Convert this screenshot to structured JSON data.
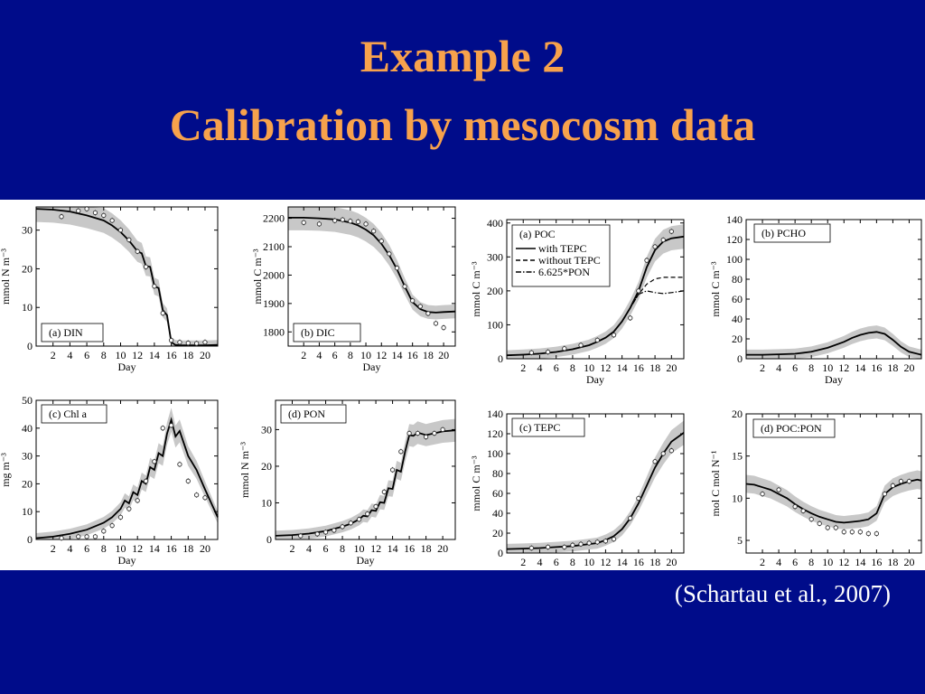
{
  "slide": {
    "title_line1": "Example 2",
    "title_line2": "Calibration by mesocosm data",
    "citation": "(Schartau et al., 2007)",
    "colors": {
      "background": "#000c8a",
      "title": "#f7a24c",
      "citation": "#ffffff",
      "band": "#c8c8c8",
      "line": "#000000"
    }
  },
  "chart_data": [
    {
      "type": "line",
      "panel_label": "(a) DIN",
      "xlabel": "Day",
      "ylabel": "mmol N m⁻³",
      "xlim": [
        0,
        21.5
      ],
      "ylim": [
        0,
        36
      ],
      "yticks": [
        0,
        10,
        20,
        30
      ],
      "xticks": [
        2,
        4,
        6,
        8,
        10,
        12,
        14,
        16,
        18,
        20
      ],
      "series": [
        {
          "kind": "model",
          "x": [
            0,
            2,
            4,
            6,
            8,
            9,
            10,
            11,
            12,
            12.5,
            13,
            13.5,
            14,
            14.5,
            15,
            15.5,
            16,
            16.5,
            17,
            18,
            19,
            20,
            21.5
          ],
          "y": [
            35.5,
            35.3,
            34.8,
            33.8,
            32.5,
            31.2,
            29.5,
            27.3,
            24.5,
            24,
            20.7,
            20.5,
            15.5,
            15,
            9.3,
            8,
            1,
            0.3,
            0.2,
            0.2,
            0.2,
            0.2,
            0.3
          ]
        },
        {
          "kind": "observations",
          "x": [
            3,
            5,
            6,
            7,
            8,
            9,
            10,
            11,
            12,
            13,
            14,
            15,
            16,
            17,
            18,
            19,
            20
          ],
          "y": [
            33.5,
            35,
            35.5,
            34.5,
            33.8,
            32.5,
            30,
            27.5,
            24.5,
            20.5,
            15.5,
            8.5,
            1.5,
            1,
            0.8,
            0.7,
            1
          ]
        }
      ]
    },
    {
      "type": "line",
      "panel_label": "(b) DIC",
      "xlabel": "Day",
      "ylabel": "mmol C m⁻³",
      "xlim": [
        0,
        21.5
      ],
      "ylim": [
        1750,
        2240
      ],
      "yticks": [
        1800,
        1900,
        2000,
        2100,
        2200
      ],
      "xticks": [
        2,
        4,
        6,
        8,
        10,
        12,
        14,
        16,
        18,
        20
      ],
      "series": [
        {
          "kind": "model",
          "x": [
            0,
            2,
            4,
            6,
            8,
            9,
            10,
            11,
            12,
            13,
            14,
            15,
            16,
            17,
            18,
            19,
            20,
            21.5
          ],
          "y": [
            2202,
            2202,
            2200,
            2196,
            2185,
            2175,
            2160,
            2140,
            2110,
            2070,
            2020,
            1960,
            1905,
            1880,
            1870,
            1868,
            1870,
            1872
          ]
        },
        {
          "kind": "observations",
          "x": [
            2,
            4,
            6,
            7,
            8,
            9,
            10,
            11,
            12,
            13,
            14,
            15,
            16,
            17,
            18,
            19,
            20
          ],
          "y": [
            2185,
            2180,
            2192,
            2195,
            2190,
            2188,
            2180,
            2155,
            2120,
            2075,
            2025,
            1960,
            1910,
            1890,
            1865,
            1830,
            1815
          ]
        }
      ]
    },
    {
      "type": "line",
      "panel_label": "(a) POC",
      "xlabel": "Day",
      "ylabel": "mmol C m⁻³",
      "xlim": [
        0,
        21.5
      ],
      "ylim": [
        0,
        410
      ],
      "yticks": [
        0,
        100,
        200,
        300,
        400
      ],
      "xticks": [
        2,
        4,
        6,
        8,
        10,
        12,
        14,
        16,
        18,
        20
      ],
      "legend": [
        "with TEPC",
        "without TEPC",
        "6.625*PON"
      ],
      "series": [
        {
          "kind": "model",
          "name": "with TEPC",
          "style": "solid",
          "x": [
            0,
            2,
            4,
            6,
            8,
            10,
            11,
            12,
            13,
            14,
            15,
            16,
            17,
            18,
            19,
            20,
            21.5
          ],
          "y": [
            10,
            12,
            15,
            20,
            28,
            40,
            50,
            62,
            80,
            110,
            150,
            200,
            270,
            320,
            345,
            355,
            360
          ]
        },
        {
          "kind": "alt",
          "name": "without TEPC",
          "style": "dashed",
          "x": [
            0,
            2,
            4,
            6,
            8,
            10,
            11,
            12,
            13,
            14,
            15,
            16,
            17,
            18,
            19,
            20,
            21.5
          ],
          "y": [
            10,
            12,
            15,
            20,
            28,
            40,
            50,
            62,
            80,
            110,
            150,
            190,
            220,
            235,
            240,
            240,
            240
          ]
        },
        {
          "kind": "alt",
          "name": "6.625*PON",
          "style": "dashdot",
          "x": [
            0,
            2,
            4,
            6,
            8,
            10,
            11,
            12,
            13,
            14,
            15,
            16,
            17,
            18,
            19,
            20,
            21.5
          ],
          "y": [
            10,
            12,
            15,
            20,
            28,
            40,
            50,
            62,
            80,
            110,
            150,
            190,
            200,
            195,
            192,
            195,
            200
          ]
        },
        {
          "kind": "observations",
          "x": [
            3,
            5,
            7,
            9,
            11,
            13,
            15,
            16,
            17,
            18,
            19,
            20
          ],
          "y": [
            18,
            20,
            30,
            40,
            55,
            70,
            120,
            200,
            290,
            330,
            350,
            375
          ]
        }
      ]
    },
    {
      "type": "line",
      "panel_label": "(b) PCHO",
      "xlabel": "Day",
      "ylabel": "mmol C m⁻³",
      "xlim": [
        0,
        21.5
      ],
      "ylim": [
        0,
        140
      ],
      "yticks": [
        0,
        20,
        40,
        60,
        80,
        100,
        120,
        140
      ],
      "xticks": [
        2,
        4,
        6,
        8,
        10,
        12,
        14,
        16,
        18,
        20
      ],
      "series": [
        {
          "kind": "model",
          "x": [
            0,
            2,
            4,
            6,
            8,
            10,
            12,
            13,
            14,
            15,
            16,
            17,
            18,
            19,
            20,
            21.5
          ],
          "y": [
            4,
            4,
            4.5,
            5,
            7,
            11,
            17,
            21,
            24,
            26,
            27,
            25,
            19,
            12,
            7,
            4
          ]
        }
      ]
    },
    {
      "type": "line",
      "panel_label": "(c) Chl a",
      "xlabel": "Day",
      "ylabel": "mg m⁻³",
      "xlim": [
        0,
        21.5
      ],
      "ylim": [
        0,
        50
      ],
      "yticks": [
        0,
        10,
        20,
        30,
        40,
        50
      ],
      "xticks": [
        2,
        4,
        6,
        8,
        10,
        12,
        14,
        16,
        18,
        20
      ],
      "series": [
        {
          "kind": "model",
          "x": [
            0,
            2,
            4,
            6,
            8,
            9,
            10,
            10.5,
            11,
            11.5,
            12,
            12.5,
            13,
            13.5,
            14,
            14.5,
            15,
            15.5,
            16,
            16.5,
            17,
            18,
            19,
            20,
            21.5
          ],
          "y": [
            0.5,
            1,
            2,
            3.5,
            6,
            8,
            11,
            14,
            13,
            17,
            16,
            21,
            20,
            26,
            25,
            31,
            30,
            38,
            43,
            37,
            39,
            30,
            25,
            18,
            8
          ]
        },
        {
          "kind": "observations",
          "x": [
            3,
            5,
            6,
            7,
            8,
            9,
            10,
            11,
            12,
            13,
            14,
            15,
            16,
            17,
            18,
            19,
            20
          ],
          "y": [
            0.5,
            1,
            1,
            1,
            3,
            5,
            8,
            11,
            14,
            21,
            28,
            40,
            41,
            27,
            21,
            16,
            15
          ]
        }
      ]
    },
    {
      "type": "line",
      "panel_label": "(d) PON",
      "xlabel": "Day",
      "ylabel": "mmol N m⁻³",
      "xlim": [
        0,
        21.5
      ],
      "ylim": [
        0,
        38
      ],
      "yticks": [
        0,
        10,
        20,
        30
      ],
      "xticks": [
        2,
        4,
        6,
        8,
        10,
        12,
        14,
        16,
        18,
        20
      ],
      "series": [
        {
          "kind": "model",
          "x": [
            0,
            2,
            4,
            6,
            8,
            9,
            10,
            10.5,
            11,
            11.5,
            12,
            12.5,
            13,
            13.5,
            14,
            14.5,
            15,
            15.5,
            16,
            16.5,
            17,
            18,
            19,
            20,
            21.5
          ],
          "y": [
            1,
            1.2,
            1.6,
            2.3,
            3.5,
            4.3,
            5.5,
            6.5,
            6.3,
            8,
            7.8,
            10.2,
            10,
            14,
            13.8,
            19,
            18.5,
            24,
            28.5,
            28.3,
            29.2,
            28.5,
            29,
            29.5,
            29.8
          ]
        },
        {
          "kind": "observations",
          "x": [
            3,
            5,
            6,
            7,
            8,
            9,
            10,
            11,
            12,
            13,
            14,
            15,
            16,
            17,
            18,
            19,
            20
          ],
          "y": [
            1,
            1.5,
            2,
            2.5,
            3.5,
            4.5,
            5.5,
            7,
            9,
            13,
            19,
            24,
            29,
            29,
            28,
            29,
            30
          ]
        }
      ]
    },
    {
      "type": "line",
      "panel_label": "(c) TEPC",
      "xlabel": "Day",
      "ylabel": "mmol C m⁻³",
      "xlim": [
        0,
        21.5
      ],
      "ylim": [
        0,
        140
      ],
      "yticks": [
        0,
        20,
        40,
        60,
        80,
        100,
        120,
        140
      ],
      "xticks": [
        2,
        4,
        6,
        8,
        10,
        12,
        14,
        16,
        18,
        20
      ],
      "series": [
        {
          "kind": "model",
          "x": [
            0,
            2,
            4,
            6,
            8,
            10,
            11,
            12,
            13,
            14,
            15,
            16,
            17,
            18,
            19,
            20,
            21.5
          ],
          "y": [
            4,
            4.5,
            5,
            6,
            7,
            9,
            10,
            13,
            17,
            24,
            35,
            50,
            68,
            86,
            100,
            112,
            121
          ]
        },
        {
          "kind": "observations",
          "x": [
            3,
            5,
            7,
            8,
            9,
            10,
            11,
            12,
            13,
            15,
            16,
            18,
            19,
            20
          ],
          "y": [
            5,
            6,
            6,
            8,
            9,
            10,
            11,
            12,
            14,
            35,
            55,
            92,
            100,
            103
          ]
        }
      ]
    },
    {
      "type": "line",
      "panel_label": "(d) POC:PON",
      "xlabel": "Day",
      "ylabel": "mol C mol N⁻¹",
      "xlim": [
        0,
        21.5
      ],
      "ylim": [
        3.5,
        20
      ],
      "yticks": [
        5,
        10,
        15,
        20
      ],
      "xticks": [
        2,
        4,
        6,
        8,
        10,
        12,
        14,
        16,
        18,
        20
      ],
      "series": [
        {
          "kind": "model",
          "x": [
            0,
            1,
            2,
            3,
            4,
            5,
            6,
            7,
            8,
            9,
            10,
            11,
            12,
            13,
            14,
            15,
            16,
            17,
            18,
            19,
            20,
            21,
            21.5
          ],
          "y": [
            11.7,
            11.6,
            11.3,
            11,
            10.5,
            10,
            9.3,
            8.7,
            8.2,
            7.8,
            7.5,
            7.2,
            7.1,
            7.2,
            7.3,
            7.5,
            8.2,
            10.5,
            11.3,
            11.7,
            12,
            12.2,
            12.1
          ]
        },
        {
          "kind": "observations",
          "x": [
            2,
            4,
            6,
            7,
            8,
            9,
            10,
            11,
            12,
            13,
            14,
            15,
            16,
            17,
            18,
            19,
            20
          ],
          "y": [
            10.5,
            11,
            9,
            8.5,
            7.5,
            7,
            6.5,
            6.5,
            6,
            6,
            6,
            5.8,
            5.8,
            10.5,
            11.5,
            12,
            12
          ]
        }
      ]
    }
  ]
}
